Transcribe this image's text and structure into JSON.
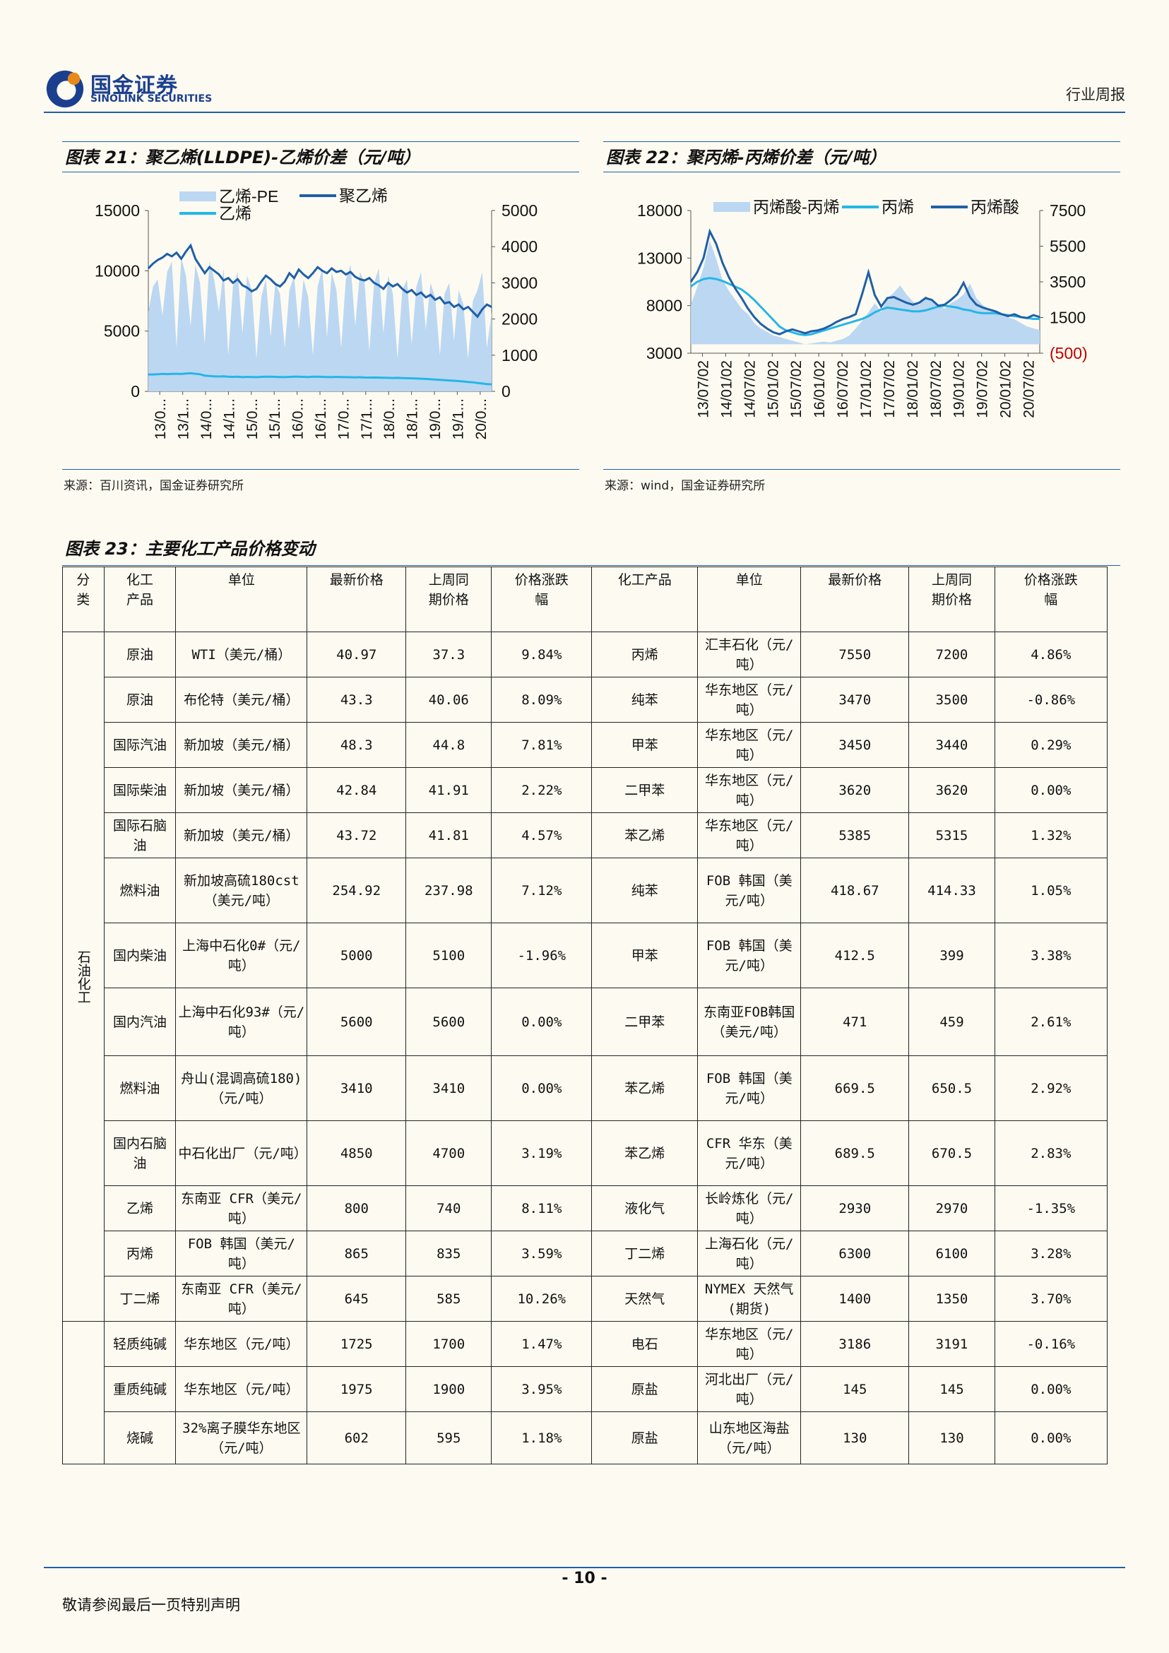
{
  "header": {
    "logo_cn": "国金证券",
    "logo_en": "SINOLINK SECURITIES",
    "report_type": "行业周报"
  },
  "figure21": {
    "title": "图表 21：聚乙烯(LLDPE)-乙烯价差（元/吨）",
    "source": "来源：百川资讯，国金证券研究所",
    "chart_data": {
      "type": "area",
      "legend": [
        "乙烯-PE",
        "聚乙烯",
        "乙烯"
      ],
      "legend_placement": "top",
      "x_ticks": [
        "13/0...",
        "13/1...",
        "14/0...",
        "14/1...",
        "15/0...",
        "15/1...",
        "16/0...",
        "16/1...",
        "17/0...",
        "17/1...",
        "18/0...",
        "18/1...",
        "19/0...",
        "19/1...",
        "20/0..."
      ],
      "y_left_ticks": [
        "15000",
        "10000",
        "5000",
        "0"
      ],
      "y_right_ticks": [
        "5000",
        "4000",
        "3000",
        "2000",
        "1000",
        "0"
      ],
      "ylim_left": [
        0,
        15000
      ],
      "ylim_right": [
        0,
        5000
      ],
      "series": [
        {
          "name": "乙烯-PE",
          "axis": "right",
          "color": "#bcd7f2",
          "values": [
            2200,
            2900,
            3100,
            2100,
            3300,
            3600,
            1200,
            3700,
            3200,
            1800,
            3500,
            3000,
            1300,
            3600,
            3100,
            2200,
            3400,
            1000,
            2900,
            3300,
            1600,
            3200,
            2800,
            900,
            2600,
            3100,
            1500,
            3000,
            2700,
            1200,
            2800,
            3200,
            1700,
            3100,
            2600,
            1000,
            2900,
            3400,
            1500,
            3300,
            2800,
            1200,
            3100,
            3500,
            1800,
            3300,
            3000,
            1100,
            3000,
            3400,
            1600,
            3200,
            2700,
            900,
            2800,
            3100,
            1300,
            2900,
            3300,
            1700,
            3000,
            2600,
            1000,
            2700,
            3000,
            1400,
            2800,
            2400,
            900,
            2500,
            2800,
            3300,
            1200,
            2200
          ]
        },
        {
          "name": "聚乙烯",
          "axis": "left",
          "color": "#1f5fa6",
          "values": [
            10200,
            10600,
            10900,
            11100,
            11400,
            11200,
            11500,
            11000,
            11600,
            12100,
            11000,
            10400,
            9800,
            10300,
            10000,
            9700,
            9200,
            9400,
            9000,
            9300,
            8800,
            8600,
            8300,
            8500,
            9100,
            9600,
            9300,
            8900,
            8700,
            9100,
            9800,
            9400,
            10100,
            9700,
            9400,
            9800,
            10300,
            10000,
            9800,
            10200,
            9900,
            10000,
            9700,
            9900,
            9500,
            9300,
            9200,
            9400,
            9000,
            8800,
            8500,
            9000,
            8700,
            8900,
            8500,
            8200,
            8400,
            8000,
            8200,
            7800,
            8000,
            7600,
            7800,
            7300,
            7400,
            7000,
            7200,
            6800,
            7000,
            6600,
            6200,
            6800,
            7200,
            7000
          ]
        },
        {
          "name": "乙烯",
          "axis": "left",
          "color": "#25b6e6",
          "values": [
            1400,
            1400,
            1420,
            1450,
            1430,
            1450,
            1460,
            1440,
            1480,
            1500,
            1460,
            1420,
            1300,
            1280,
            1250,
            1230,
            1250,
            1220,
            1200,
            1210,
            1180,
            1200,
            1190,
            1180,
            1200,
            1220,
            1210,
            1200,
            1190,
            1180,
            1200,
            1220,
            1210,
            1200,
            1190,
            1210,
            1220,
            1200,
            1190,
            1180,
            1200,
            1190,
            1180,
            1170,
            1160,
            1170,
            1150,
            1140,
            1150,
            1140,
            1130,
            1120,
            1110,
            1120,
            1100,
            1090,
            1080,
            1070,
            1050,
            1030,
            1000,
            980,
            950,
            930,
            900,
            880,
            850,
            820,
            780,
            750,
            700,
            650,
            600,
            580
          ]
        }
      ]
    }
  },
  "figure22": {
    "title": "图表 22：聚丙烯-丙烯价差（元/吨）",
    "source": "来源：wind，国金证券研究所",
    "chart_data": {
      "type": "area",
      "legend": [
        "丙烯酸-丙烯",
        "丙烯",
        "丙烯酸"
      ],
      "legend_placement": "top",
      "x_ticks": [
        "13/07/02",
        "14/01/02",
        "14/07/02",
        "15/01/02",
        "15/07/02",
        "16/01/02",
        "16/07/02",
        "17/01/02",
        "17/07/02",
        "18/01/02",
        "18/07/02",
        "19/01/02",
        "19/07/02",
        "20/01/02",
        "20/07/02"
      ],
      "y_left_ticks": [
        "18000",
        "13000",
        "8000",
        "3000"
      ],
      "y_right_ticks": [
        "7500",
        "5500",
        "3500",
        "1500",
        "(500)"
      ],
      "ylim_left": [
        3000,
        18000
      ],
      "ylim_right": [
        -500,
        7500
      ],
      "series": [
        {
          "name": "丙烯酸-丙烯",
          "axis": "right",
          "color": "#bcd7f2",
          "values": [
            2200,
            3200,
            4300,
            5800,
            4800,
            3600,
            3000,
            2500,
            2000,
            1700,
            1200,
            900,
            700,
            500,
            400,
            300,
            200,
            100,
            0,
            50,
            100,
            150,
            100,
            200,
            300,
            500,
            900,
            1300,
            1800,
            2300,
            1800,
            2600,
            2900,
            3300,
            2800,
            2400,
            2200,
            2700,
            2500,
            2200,
            2000,
            2300,
            2500,
            2800,
            3400,
            2600,
            2200,
            2000,
            1800,
            1600,
            1500,
            1400,
            1200,
            1000,
            900,
            800
          ]
        },
        {
          "name": "丙烯",
          "axis": "left",
          "color": "#25b6e6",
          "values": [
            10000,
            10500,
            10800,
            10900,
            10800,
            10600,
            10300,
            10000,
            9700,
            9200,
            8600,
            7900,
            7200,
            6500,
            5800,
            5400,
            5200,
            5000,
            4900,
            5000,
            5200,
            5400,
            5600,
            5800,
            6000,
            6200,
            6400,
            6600,
            6900,
            7300,
            7600,
            7800,
            7700,
            7600,
            7500,
            7400,
            7400,
            7500,
            7700,
            7900,
            8000,
            7900,
            7800,
            7600,
            7500,
            7300,
            7200,
            7200,
            7200,
            7100,
            7000,
            6900,
            6800,
            6700,
            6600,
            6600
          ]
        },
        {
          "name": "丙烯酸",
          "axis": "left",
          "color": "#1f5fa6",
          "values": [
            10500,
            11500,
            13000,
            15800,
            14500,
            12500,
            11000,
            9800,
            8800,
            7700,
            6800,
            6100,
            5600,
            5200,
            5000,
            5300,
            5500,
            5300,
            5100,
            5300,
            5400,
            5600,
            5900,
            6300,
            6600,
            6800,
            7100,
            9200,
            11500,
            9100,
            7900,
            8800,
            8900,
            8600,
            8300,
            8100,
            8300,
            8800,
            8600,
            8000,
            8100,
            8600,
            9200,
            10400,
            8900,
            8100,
            7800,
            7600,
            7400,
            7100,
            6900,
            7100,
            6800,
            6700,
            7000,
            6800
          ]
        }
      ]
    }
  },
  "figure23": {
    "title": "图表 23：主要化工产品价格变动",
    "headers": [
      "分类",
      "化工产品",
      "单位",
      "最新价格",
      "上周同期价格",
      "价格涨跌幅",
      "化工产品",
      "单位",
      "最新价格",
      "上周同期价格",
      "价格涨跌幅"
    ],
    "header_lines": {
      "c0": [
        "分",
        "类"
      ],
      "c1": [
        "化工",
        "产品"
      ],
      "c2": [
        "单位"
      ],
      "c3": [
        "最新价格"
      ],
      "c4": [
        "上周同",
        "期价格"
      ],
      "c5": [
        "价格涨跌",
        "幅"
      ],
      "c6": [
        "化工产品"
      ],
      "c7": [
        "单位"
      ],
      "c8": [
        "最新价格"
      ],
      "c9": [
        "上周同",
        "期价格"
      ],
      "c10": [
        "价格涨跌",
        "幅"
      ]
    },
    "category1": "石油化工",
    "category2": "",
    "rows": [
      {
        "p1": "原油",
        "u1": "WTI（美元/桶）",
        "l1": "40.97",
        "w1": "37.3",
        "c1": "9.84%",
        "p2": "丙烯",
        "u2": "汇丰石化（元/吨）",
        "l2": "7550",
        "w2": "7200",
        "c2": "4.86%"
      },
      {
        "p1": "原油",
        "u1": "布伦特（美元/桶）",
        "l1": "43.3",
        "w1": "40.06",
        "c1": "8.09%",
        "p2": "纯苯",
        "u2": "华东地区（元/吨）",
        "l2": "3470",
        "w2": "3500",
        "c2": "-0.86%"
      },
      {
        "p1": "国际汽油",
        "u1": "新加坡（美元/桶）",
        "l1": "48.3",
        "w1": "44.8",
        "c1": "7.81%",
        "p2": "甲苯",
        "u2": "华东地区（元/吨）",
        "l2": "3450",
        "w2": "3440",
        "c2": "0.29%"
      },
      {
        "p1": "国际柴油",
        "u1": "新加坡（美元/桶）",
        "l1": "42.84",
        "w1": "41.91",
        "c1": "2.22%",
        "p2": "二甲苯",
        "u2": "华东地区（元/吨）",
        "l2": "3620",
        "w2": "3620",
        "c2": "0.00%"
      },
      {
        "p1": "国际石脑油",
        "u1": "新加坡（美元/桶）",
        "l1": "43.72",
        "w1": "41.81",
        "c1": "4.57%",
        "p2": "苯乙烯",
        "u2": "华东地区（元/吨）",
        "l2": "5385",
        "w2": "5315",
        "c2": "1.32%"
      },
      {
        "p1": "燃料油",
        "u1": "新加坡高硫180cst（美元/吨）",
        "l1": "254.92",
        "w1": "237.98",
        "c1": "7.12%",
        "p2": "纯苯",
        "u2": "FOB 韩国（美元/吨）",
        "l2": "418.67",
        "w2": "414.33",
        "c2": "1.05%"
      },
      {
        "p1": "国内柴油",
        "u1": "上海中石化0#（元/吨）",
        "l1": "5000",
        "w1": "5100",
        "c1": "-1.96%",
        "p2": "甲苯",
        "u2": "FOB 韩国（美元/吨）",
        "l2": "412.5",
        "w2": "399",
        "c2": "3.38%"
      },
      {
        "p1": "国内汽油",
        "u1": "上海中石化93#（元/吨）",
        "l1": "5600",
        "w1": "5600",
        "c1": "0.00%",
        "p2": "二甲苯",
        "u2": "东南亚FOB韩国（美元/吨）",
        "l2": "471",
        "w2": "459",
        "c2": "2.61%"
      },
      {
        "p1": "燃料油",
        "u1": "舟山(混调高硫180)（元/吨）",
        "l1": "3410",
        "w1": "3410",
        "c1": "0.00%",
        "p2": "苯乙烯",
        "u2": "FOB 韩国（美元/吨）",
        "l2": "669.5",
        "w2": "650.5",
        "c2": "2.92%"
      },
      {
        "p1": "国内石脑油",
        "u1": "中石化出厂（元/吨）",
        "l1": "4850",
        "w1": "4700",
        "c1": "3.19%",
        "p2": "苯乙烯",
        "u2": "CFR 华东（美元/吨）",
        "l2": "689.5",
        "w2": "670.5",
        "c2": "2.83%"
      },
      {
        "p1": "乙烯",
        "u1": "东南亚 CFR（美元/吨）",
        "l1": "800",
        "w1": "740",
        "c1": "8.11%",
        "p2": "液化气",
        "u2": "长岭炼化（元/吨）",
        "l2": "2930",
        "w2": "2970",
        "c2": "-1.35%"
      },
      {
        "p1": "丙烯",
        "u1": "FOB 韩国（美元/吨）",
        "l1": "865",
        "w1": "835",
        "c1": "3.59%",
        "p2": "丁二烯",
        "u2": "上海石化（元/吨）",
        "l2": "6300",
        "w2": "6100",
        "c2": "3.28%"
      },
      {
        "p1": "丁二烯",
        "u1": "东南亚 CFR（美元/吨）",
        "l1": "645",
        "w1": "585",
        "c1": "10.26%",
        "p2": "天然气",
        "u2": "NYMEX 天然气(期货)",
        "l2": "1400",
        "w2": "1350",
        "c2": "3.70%"
      },
      {
        "p1": "轻质纯碱",
        "u1": "华东地区（元/吨）",
        "l1": "1725",
        "w1": "1700",
        "c1": "1.47%",
        "p2": "电石",
        "u2": "华东地区（元/吨）",
        "l2": "3186",
        "w2": "3191",
        "c2": "-0.16%"
      },
      {
        "p1": "重质纯碱",
        "u1": "华东地区（元/吨）",
        "l1": "1975",
        "w1": "1900",
        "c1": "3.95%",
        "p2": "原盐",
        "u2": "河北出厂（元/吨）",
        "l2": "145",
        "w2": "145",
        "c2": "0.00%"
      },
      {
        "p1": "烧碱",
        "u1": "32%离子膜华东地区（元/吨）",
        "l1": "602",
        "w1": "595",
        "c1": "1.18%",
        "p2": "原盐",
        "u2": "山东地区海盐（元/吨）",
        "l2": "130",
        "w2": "130",
        "c2": "0.00%"
      }
    ]
  },
  "footer": {
    "page_number": "- 10 -",
    "disclaimer": "敬请参阅最后一页特别声明"
  },
  "colors": {
    "brand_blue": "#1f5fa6",
    "light_fill": "#bcd7f2",
    "cyan": "#25b6e6",
    "neg_red": "#c00000"
  }
}
